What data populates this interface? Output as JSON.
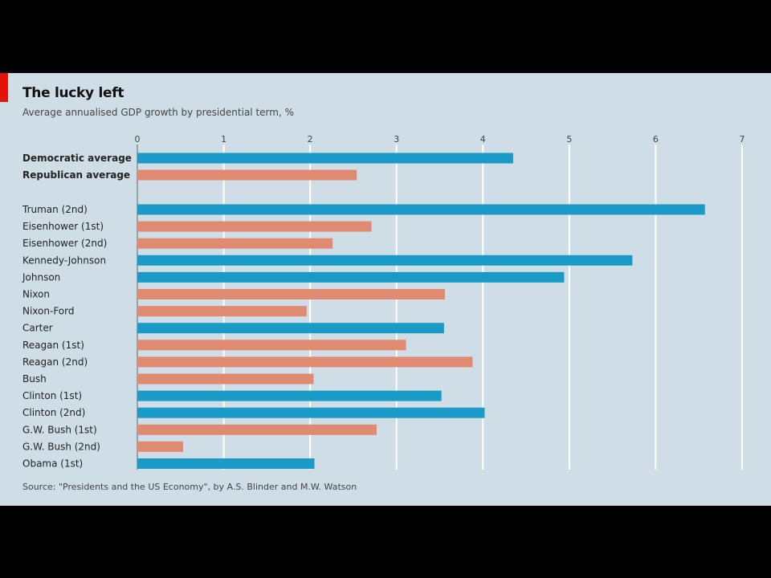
{
  "chart_data": {
    "type": "bar",
    "orientation": "horizontal",
    "title": "The lucky left",
    "subtitle": "Average annualised GDP growth by presidential term, %",
    "source": "Source: \"Presidents and the US Economy\", by A.S. Blinder and M.W. Watson",
    "xlim": [
      0,
      7
    ],
    "xticks": [
      "0",
      "1",
      "2",
      "3",
      "4",
      "5",
      "6",
      "7"
    ],
    "grid": true,
    "colors": {
      "democratic": "#1a9bc7",
      "republican": "#e08a72",
      "background": "#cfdde6",
      "accent": "#e3120b"
    },
    "summary": [
      {
        "label": "Democratic average",
        "party": "democratic",
        "value": 4.35
      },
      {
        "label": "Republican average",
        "party": "republican",
        "value": 2.54
      }
    ],
    "categories": [
      {
        "label": "Truman (2nd)",
        "party": "democratic",
        "value": 6.57
      },
      {
        "label": "Eisenhower (1st)",
        "party": "republican",
        "value": 2.71
      },
      {
        "label": "Eisenhower (2nd)",
        "party": "republican",
        "value": 2.26
      },
      {
        "label": "Kennedy-Johnson",
        "party": "democratic",
        "value": 5.73
      },
      {
        "label": "Johnson",
        "party": "democratic",
        "value": 4.94
      },
      {
        "label": "Nixon",
        "party": "republican",
        "value": 3.56
      },
      {
        "label": "Nixon-Ford",
        "party": "republican",
        "value": 1.96
      },
      {
        "label": "Carter",
        "party": "democratic",
        "value": 3.55
      },
      {
        "label": "Reagan (1st)",
        "party": "republican",
        "value": 3.11
      },
      {
        "label": "Reagan (2nd)",
        "party": "republican",
        "value": 3.88
      },
      {
        "label": "Bush",
        "party": "republican",
        "value": 2.04
      },
      {
        "label": "Clinton (1st)",
        "party": "democratic",
        "value": 3.52
      },
      {
        "label": "Clinton (2nd)",
        "party": "democratic",
        "value": 4.02
      },
      {
        "label": "G.W. Bush (1st)",
        "party": "republican",
        "value": 2.77
      },
      {
        "label": "G.W. Bush (2nd)",
        "party": "republican",
        "value": 0.53
      },
      {
        "label": "Obama (1st)",
        "party": "democratic",
        "value": 2.05
      }
    ]
  }
}
